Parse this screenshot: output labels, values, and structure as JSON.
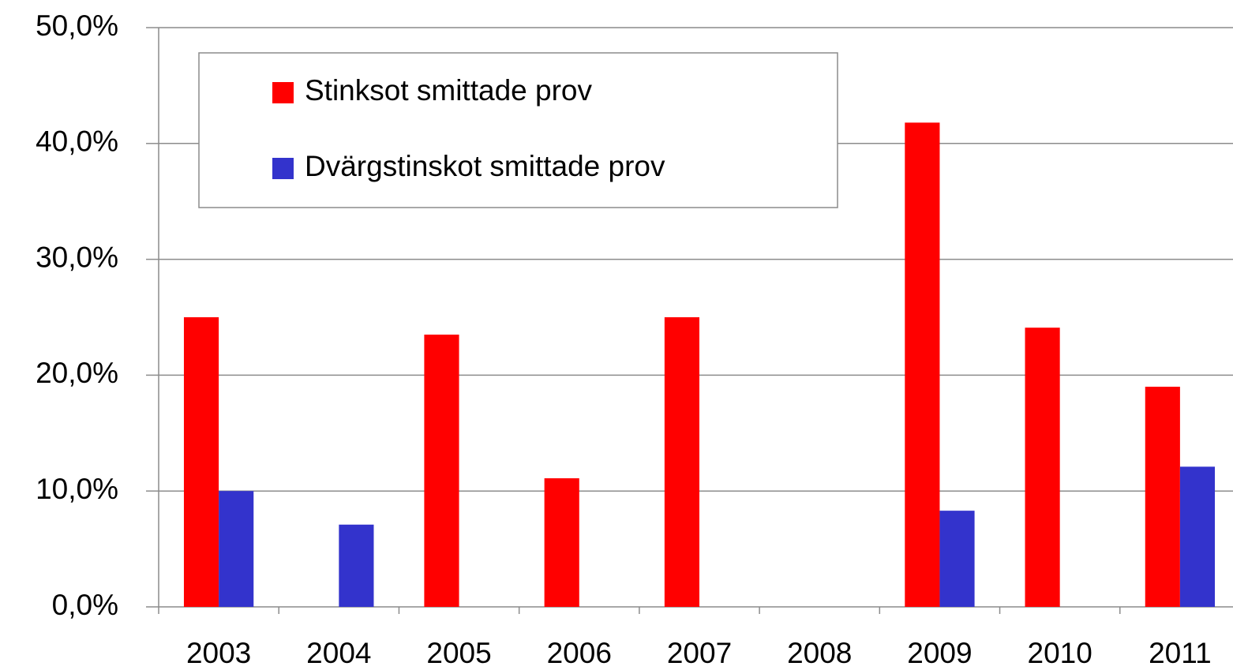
{
  "chart_data": {
    "type": "bar",
    "categories": [
      "2003",
      "2004",
      "2005",
      "2006",
      "2007",
      "2008",
      "2009",
      "2010",
      "2011"
    ],
    "series": [
      {
        "name": "Stinksot smittade prov",
        "color": "#ff0000",
        "values": [
          25.0,
          0,
          23.5,
          11.1,
          25.0,
          0,
          41.8,
          24.1,
          19.0
        ]
      },
      {
        "name": "Dvärgstinskot smittade prov",
        "color": "#3333cc",
        "values": [
          10.0,
          7.1,
          0,
          0,
          0,
          0,
          8.3,
          0,
          12.1
        ]
      }
    ],
    "ylim": [
      0,
      50
    ],
    "yticks": [
      {
        "value": 0,
        "label": "0,0%"
      },
      {
        "value": 10,
        "label": "10,0%"
      },
      {
        "value": 20,
        "label": "20,0%"
      },
      {
        "value": 30,
        "label": "30,0%"
      },
      {
        "value": 40,
        "label": "40,0%"
      },
      {
        "value": 50,
        "label": "50,0%"
      }
    ],
    "grid": true,
    "legend": "upper left"
  }
}
